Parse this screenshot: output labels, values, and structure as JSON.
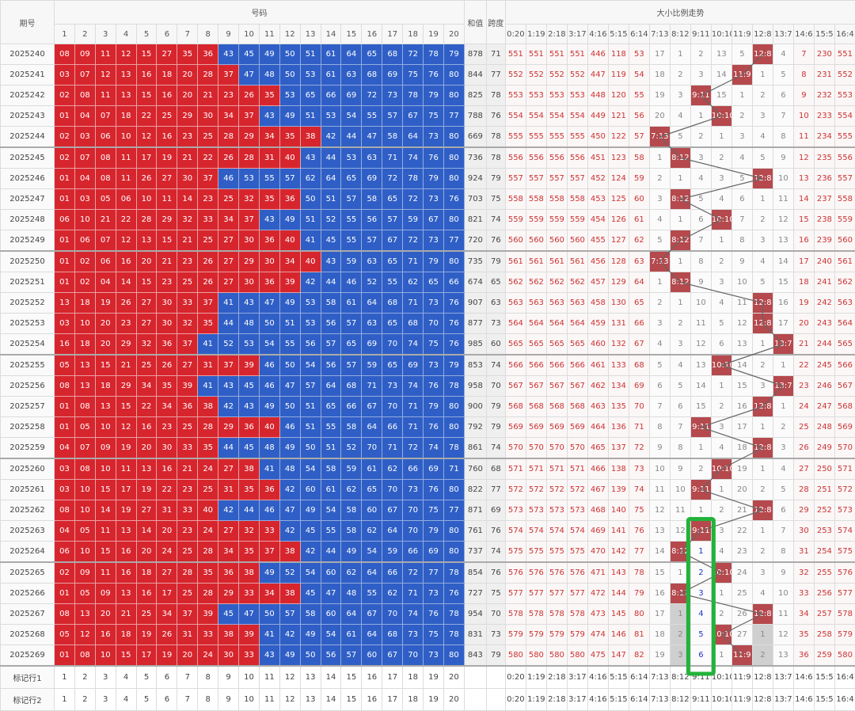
{
  "header": {
    "period": "期号",
    "numbers": "号码",
    "sum": "和值",
    "span": "跨度",
    "trend": "大小比例走势",
    "number_cols": [
      1,
      2,
      3,
      4,
      5,
      6,
      7,
      8,
      9,
      10,
      11,
      12,
      13,
      14,
      15,
      16,
      17,
      18,
      19,
      20
    ],
    "ratio_cols": [
      "0:20",
      "1:19",
      "2:18",
      "3:17",
      "4:16",
      "5:15",
      "6:14",
      "7:13",
      "8:12",
      "9:11",
      "10:10",
      "11:9",
      "12:8",
      "13:7",
      "14:6",
      "15:5",
      "16:4"
    ]
  },
  "rows": [
    {
      "period": 2025240,
      "balls": [
        "08",
        "09",
        "11",
        "12",
        "15",
        "27",
        "35",
        "36",
        "43",
        "45",
        "49",
        "50",
        "51",
        "61",
        "64",
        "65",
        "68",
        "72",
        "78",
        "79"
      ],
      "sum": 878,
      "span": 71,
      "trend": [
        551,
        551,
        551,
        551,
        446,
        118,
        53,
        17,
        1,
        2,
        13,
        5,
        "12:8",
        4,
        7,
        230,
        551
      ]
    },
    {
      "period": 2025241,
      "balls": [
        "03",
        "07",
        "12",
        "13",
        "16",
        "18",
        "20",
        "28",
        "37",
        "47",
        "48",
        "50",
        "53",
        "61",
        "63",
        "68",
        "69",
        "75",
        "76",
        "80"
      ],
      "sum": 844,
      "span": 77,
      "trend": [
        552,
        552,
        552,
        552,
        447,
        119,
        54,
        18,
        2,
        3,
        14,
        "11:9",
        1,
        5,
        8,
        231,
        552
      ]
    },
    {
      "period": 2025242,
      "balls": [
        "02",
        "08",
        "11",
        "13",
        "15",
        "16",
        "20",
        "21",
        "23",
        "26",
        "35",
        "53",
        "65",
        "66",
        "69",
        "72",
        "73",
        "78",
        "79",
        "80"
      ],
      "sum": 825,
      "span": 78,
      "trend": [
        553,
        553,
        553,
        553,
        448,
        120,
        55,
        19,
        3,
        "9:11",
        15,
        1,
        2,
        6,
        9,
        232,
        553
      ]
    },
    {
      "period": 2025243,
      "balls": [
        "01",
        "04",
        "07",
        "18",
        "22",
        "25",
        "29",
        "30",
        "34",
        "37",
        "43",
        "49",
        "51",
        "53",
        "54",
        "55",
        "57",
        "67",
        "75",
        "77"
      ],
      "sum": 788,
      "span": 76,
      "trend": [
        554,
        554,
        554,
        554,
        449,
        121,
        56,
        20,
        4,
        1,
        "10:10",
        2,
        3,
        7,
        10,
        233,
        554
      ]
    },
    {
      "period": 2025244,
      "balls": [
        "02",
        "03",
        "06",
        "10",
        "12",
        "16",
        "23",
        "25",
        "28",
        "29",
        "34",
        "35",
        "38",
        "42",
        "44",
        "47",
        "58",
        "64",
        "73",
        "80"
      ],
      "sum": 669,
      "span": 78,
      "trend": [
        555,
        555,
        555,
        555,
        450,
        122,
        57,
        "7:13",
        5,
        2,
        1,
        3,
        4,
        8,
        11,
        234,
        555
      ]
    },
    {
      "period": 2025245,
      "balls": [
        "02",
        "07",
        "08",
        "11",
        "17",
        "19",
        "21",
        "22",
        "26",
        "28",
        "31",
        "40",
        "43",
        "44",
        "53",
        "63",
        "71",
        "74",
        "76",
        "80"
      ],
      "sum": 736,
      "span": 78,
      "trend": [
        556,
        556,
        556,
        556,
        451,
        123,
        58,
        1,
        "8:12",
        3,
        2,
        4,
        5,
        9,
        12,
        235,
        556
      ]
    },
    {
      "period": 2025246,
      "balls": [
        "01",
        "04",
        "08",
        "11",
        "26",
        "27",
        "30",
        "37",
        "46",
        "53",
        "55",
        "57",
        "62",
        "64",
        "65",
        "69",
        "72",
        "78",
        "79",
        "80"
      ],
      "sum": 924,
      "span": 79,
      "trend": [
        557,
        557,
        557,
        557,
        452,
        124,
        59,
        2,
        1,
        4,
        3,
        5,
        "12:8",
        10,
        13,
        236,
        557
      ]
    },
    {
      "period": 2025247,
      "balls": [
        "01",
        "03",
        "05",
        "06",
        "10",
        "11",
        "14",
        "23",
        "25",
        "32",
        "35",
        "36",
        "50",
        "51",
        "57",
        "58",
        "65",
        "72",
        "73",
        "76"
      ],
      "sum": 703,
      "span": 75,
      "trend": [
        558,
        558,
        558,
        558,
        453,
        125,
        60,
        3,
        "8:12",
        5,
        4,
        6,
        1,
        11,
        14,
        237,
        558
      ]
    },
    {
      "period": 2025248,
      "balls": [
        "06",
        "10",
        "21",
        "22",
        "28",
        "29",
        "32",
        "33",
        "34",
        "37",
        "43",
        "49",
        "51",
        "52",
        "55",
        "56",
        "57",
        "59",
        "67",
        "80"
      ],
      "sum": 821,
      "span": 74,
      "trend": [
        559,
        559,
        559,
        559,
        454,
        126,
        61,
        4,
        1,
        6,
        "10:10",
        7,
        2,
        12,
        15,
        238,
        559
      ]
    },
    {
      "period": 2025249,
      "balls": [
        "01",
        "06",
        "07",
        "12",
        "13",
        "15",
        "21",
        "25",
        "27",
        "30",
        "36",
        "40",
        "41",
        "45",
        "55",
        "57",
        "67",
        "72",
        "73",
        "77"
      ],
      "sum": 720,
      "span": 76,
      "trend": [
        560,
        560,
        560,
        560,
        455,
        127,
        62,
        5,
        "8:12",
        7,
        1,
        8,
        3,
        13,
        16,
        239,
        560
      ]
    },
    {
      "period": 2025250,
      "balls": [
        "01",
        "02",
        "06",
        "16",
        "20",
        "21",
        "23",
        "26",
        "27",
        "29",
        "30",
        "34",
        "40",
        "43",
        "59",
        "63",
        "65",
        "71",
        "79",
        "80"
      ],
      "sum": 735,
      "span": 79,
      "trend": [
        561,
        561,
        561,
        561,
        456,
        128,
        63,
        "7:13",
        1,
        8,
        2,
        9,
        4,
        14,
        17,
        240,
        561
      ]
    },
    {
      "period": 2025251,
      "balls": [
        "01",
        "02",
        "04",
        "14",
        "15",
        "23",
        "25",
        "26",
        "27",
        "30",
        "36",
        "39",
        "42",
        "44",
        "46",
        "52",
        "55",
        "62",
        "65",
        "66"
      ],
      "sum": 674,
      "span": 65,
      "trend": [
        562,
        562,
        562,
        562,
        457,
        129,
        64,
        1,
        "8:12",
        9,
        3,
        10,
        5,
        15,
        18,
        241,
        562
      ]
    },
    {
      "period": 2025252,
      "balls": [
        "13",
        "18",
        "19",
        "26",
        "27",
        "30",
        "33",
        "37",
        "41",
        "43",
        "47",
        "49",
        "53",
        "58",
        "61",
        "64",
        "68",
        "71",
        "73",
        "76"
      ],
      "sum": 907,
      "span": 63,
      "trend": [
        563,
        563,
        563,
        563,
        458,
        130,
        65,
        2,
        1,
        10,
        4,
        11,
        "12:8",
        16,
        19,
        242,
        563
      ]
    },
    {
      "period": 2025253,
      "balls": [
        "03",
        "10",
        "20",
        "23",
        "27",
        "30",
        "32",
        "35",
        "44",
        "48",
        "50",
        "51",
        "53",
        "56",
        "57",
        "63",
        "65",
        "68",
        "70",
        "76"
      ],
      "sum": 877,
      "span": 73,
      "trend": [
        564,
        564,
        564,
        564,
        459,
        131,
        66,
        3,
        2,
        11,
        5,
        12,
        "12:8",
        17,
        20,
        243,
        564
      ]
    },
    {
      "period": 2025254,
      "balls": [
        "16",
        "18",
        "20",
        "29",
        "32",
        "36",
        "37",
        "41",
        "52",
        "53",
        "54",
        "55",
        "56",
        "57",
        "65",
        "69",
        "70",
        "74",
        "75",
        "76"
      ],
      "sum": 985,
      "span": 60,
      "trend": [
        565,
        565,
        565,
        565,
        460,
        132,
        67,
        4,
        3,
        12,
        6,
        13,
        1,
        "13:7",
        21,
        244,
        565
      ]
    },
    {
      "period": 2025255,
      "balls": [
        "05",
        "13",
        "15",
        "21",
        "25",
        "26",
        "27",
        "31",
        "37",
        "39",
        "46",
        "50",
        "54",
        "56",
        "57",
        "59",
        "65",
        "69",
        "73",
        "79"
      ],
      "sum": 853,
      "span": 74,
      "trend": [
        566,
        566,
        566,
        566,
        461,
        133,
        68,
        5,
        4,
        13,
        "10:10",
        14,
        2,
        1,
        22,
        245,
        566
      ]
    },
    {
      "period": 2025256,
      "balls": [
        "08",
        "13",
        "18",
        "29",
        "34",
        "35",
        "39",
        "41",
        "43",
        "45",
        "46",
        "47",
        "57",
        "64",
        "68",
        "71",
        "73",
        "74",
        "76",
        "78"
      ],
      "sum": 958,
      "span": 70,
      "trend": [
        567,
        567,
        567,
        567,
        462,
        134,
        69,
        6,
        5,
        14,
        1,
        15,
        3,
        "13:7",
        23,
        246,
        567
      ]
    },
    {
      "period": 2025257,
      "balls": [
        "01",
        "08",
        "13",
        "15",
        "22",
        "34",
        "36",
        "38",
        "42",
        "43",
        "49",
        "50",
        "51",
        "65",
        "66",
        "67",
        "70",
        "71",
        "79",
        "80"
      ],
      "sum": 900,
      "span": 79,
      "trend": [
        568,
        568,
        568,
        568,
        463,
        135,
        70,
        7,
        6,
        15,
        2,
        16,
        "12:8",
        1,
        24,
        247,
        568
      ]
    },
    {
      "period": 2025258,
      "balls": [
        "01",
        "05",
        "10",
        "12",
        "16",
        "23",
        "25",
        "28",
        "29",
        "36",
        "40",
        "46",
        "51",
        "55",
        "58",
        "64",
        "66",
        "71",
        "76",
        "80"
      ],
      "sum": 792,
      "span": 79,
      "trend": [
        569,
        569,
        569,
        569,
        464,
        136,
        71,
        8,
        7,
        "9:11",
        3,
        17,
        1,
        2,
        25,
        248,
        569
      ]
    },
    {
      "period": 2025259,
      "balls": [
        "04",
        "07",
        "09",
        "19",
        "20",
        "30",
        "33",
        "35",
        "44",
        "45",
        "48",
        "49",
        "50",
        "51",
        "52",
        "70",
        "71",
        "72",
        "74",
        "78"
      ],
      "sum": 861,
      "span": 74,
      "trend": [
        570,
        570,
        570,
        570,
        465,
        137,
        72,
        9,
        8,
        1,
        4,
        18,
        "12:8",
        3,
        26,
        249,
        570
      ]
    },
    {
      "period": 2025260,
      "balls": [
        "03",
        "08",
        "10",
        "11",
        "13",
        "16",
        "21",
        "24",
        "27",
        "38",
        "41",
        "48",
        "54",
        "58",
        "59",
        "61",
        "62",
        "66",
        "69",
        "71"
      ],
      "sum": 760,
      "span": 68,
      "trend": [
        571,
        571,
        571,
        571,
        466,
        138,
        73,
        10,
        9,
        2,
        "10:10",
        19,
        1,
        4,
        27,
        250,
        571
      ]
    },
    {
      "period": 2025261,
      "balls": [
        "03",
        "10",
        "15",
        "17",
        "19",
        "22",
        "23",
        "25",
        "31",
        "35",
        "36",
        "42",
        "60",
        "61",
        "62",
        "65",
        "70",
        "73",
        "76",
        "80"
      ],
      "sum": 822,
      "span": 77,
      "trend": [
        572,
        572,
        572,
        572,
        467,
        139,
        74,
        11,
        10,
        "9:11",
        1,
        20,
        2,
        5,
        28,
        251,
        572
      ]
    },
    {
      "period": 2025262,
      "balls": [
        "08",
        "10",
        "14",
        "19",
        "27",
        "31",
        "33",
        "40",
        "42",
        "44",
        "46",
        "47",
        "49",
        "54",
        "58",
        "60",
        "67",
        "70",
        "75",
        "77"
      ],
      "sum": 871,
      "span": 69,
      "trend": [
        573,
        573,
        573,
        573,
        468,
        140,
        75,
        12,
        11,
        1,
        2,
        21,
        "12:8",
        6,
        29,
        252,
        573
      ]
    },
    {
      "period": 2025263,
      "balls": [
        "04",
        "05",
        "11",
        "13",
        "14",
        "20",
        "23",
        "24",
        "27",
        "32",
        "33",
        "42",
        "45",
        "55",
        "58",
        "62",
        "64",
        "70",
        "79",
        "80"
      ],
      "sum": 761,
      "span": 76,
      "trend": [
        574,
        574,
        574,
        574,
        469,
        141,
        76,
        13,
        12,
        "9:11",
        3,
        22,
        1,
        7,
        30,
        253,
        574
      ]
    },
    {
      "period": 2025264,
      "balls": [
        "06",
        "10",
        "15",
        "16",
        "20",
        "24",
        "25",
        "28",
        "34",
        "35",
        "37",
        "38",
        "42",
        "44",
        "49",
        "54",
        "59",
        "66",
        "69",
        "80"
      ],
      "sum": 737,
      "span": 74,
      "trend": [
        575,
        575,
        575,
        575,
        470,
        142,
        77,
        14,
        "8:12",
        1,
        4,
        23,
        2,
        8,
        31,
        254,
        575
      ]
    },
    {
      "period": 2025265,
      "balls": [
        "02",
        "09",
        "11",
        "16",
        "18",
        "27",
        "28",
        "35",
        "36",
        "38",
        "49",
        "52",
        "54",
        "60",
        "62",
        "64",
        "66",
        "72",
        "77",
        "78"
      ],
      "sum": 854,
      "span": 76,
      "trend": [
        576,
        576,
        576,
        576,
        471,
        143,
        78,
        15,
        1,
        2,
        "10:10",
        24,
        3,
        9,
        32,
        255,
        576
      ]
    },
    {
      "period": 2025266,
      "balls": [
        "01",
        "05",
        "09",
        "13",
        "16",
        "17",
        "25",
        "28",
        "29",
        "33",
        "34",
        "38",
        "45",
        "47",
        "48",
        "55",
        "62",
        "71",
        "73",
        "76"
      ],
      "sum": 727,
      "span": 75,
      "trend": [
        577,
        577,
        577,
        577,
        472,
        144,
        79,
        16,
        "8:12",
        3,
        1,
        25,
        4,
        10,
        33,
        256,
        577
      ]
    },
    {
      "period": 2025267,
      "balls": [
        "08",
        "13",
        "20",
        "21",
        "25",
        "34",
        "37",
        "39",
        "45",
        "47",
        "50",
        "57",
        "58",
        "60",
        "64",
        "67",
        "70",
        "74",
        "76",
        "78"
      ],
      "sum": 954,
      "span": 70,
      "trend": [
        578,
        578,
        578,
        578,
        473,
        145,
        80,
        17,
        1,
        4,
        2,
        26,
        "12:8",
        11,
        34,
        257,
        578
      ]
    },
    {
      "period": 2025268,
      "balls": [
        "05",
        "12",
        "16",
        "18",
        "19",
        "26",
        "31",
        "33",
        "38",
        "39",
        "41",
        "42",
        "49",
        "54",
        "61",
        "64",
        "68",
        "73",
        "75",
        "78"
      ],
      "sum": 831,
      "span": 73,
      "trend": [
        579,
        579,
        579,
        579,
        474,
        146,
        81,
        18,
        2,
        5,
        "10:10",
        27,
        1,
        12,
        35,
        258,
        579
      ]
    },
    {
      "period": 2025269,
      "balls": [
        "01",
        "08",
        "10",
        "15",
        "17",
        "19",
        "20",
        "24",
        "30",
        "33",
        "43",
        "49",
        "50",
        "56",
        "57",
        "60",
        "67",
        "70",
        "73",
        "80"
      ],
      "sum": 843,
      "span": 79,
      "trend": [
        580,
        580,
        580,
        580,
        475,
        147,
        82,
        19,
        3,
        6,
        1,
        "11:9",
        2,
        13,
        36,
        259,
        580
      ]
    }
  ],
  "footer": [
    {
      "label": "标记行1"
    },
    {
      "label": "标记行2"
    }
  ]
}
